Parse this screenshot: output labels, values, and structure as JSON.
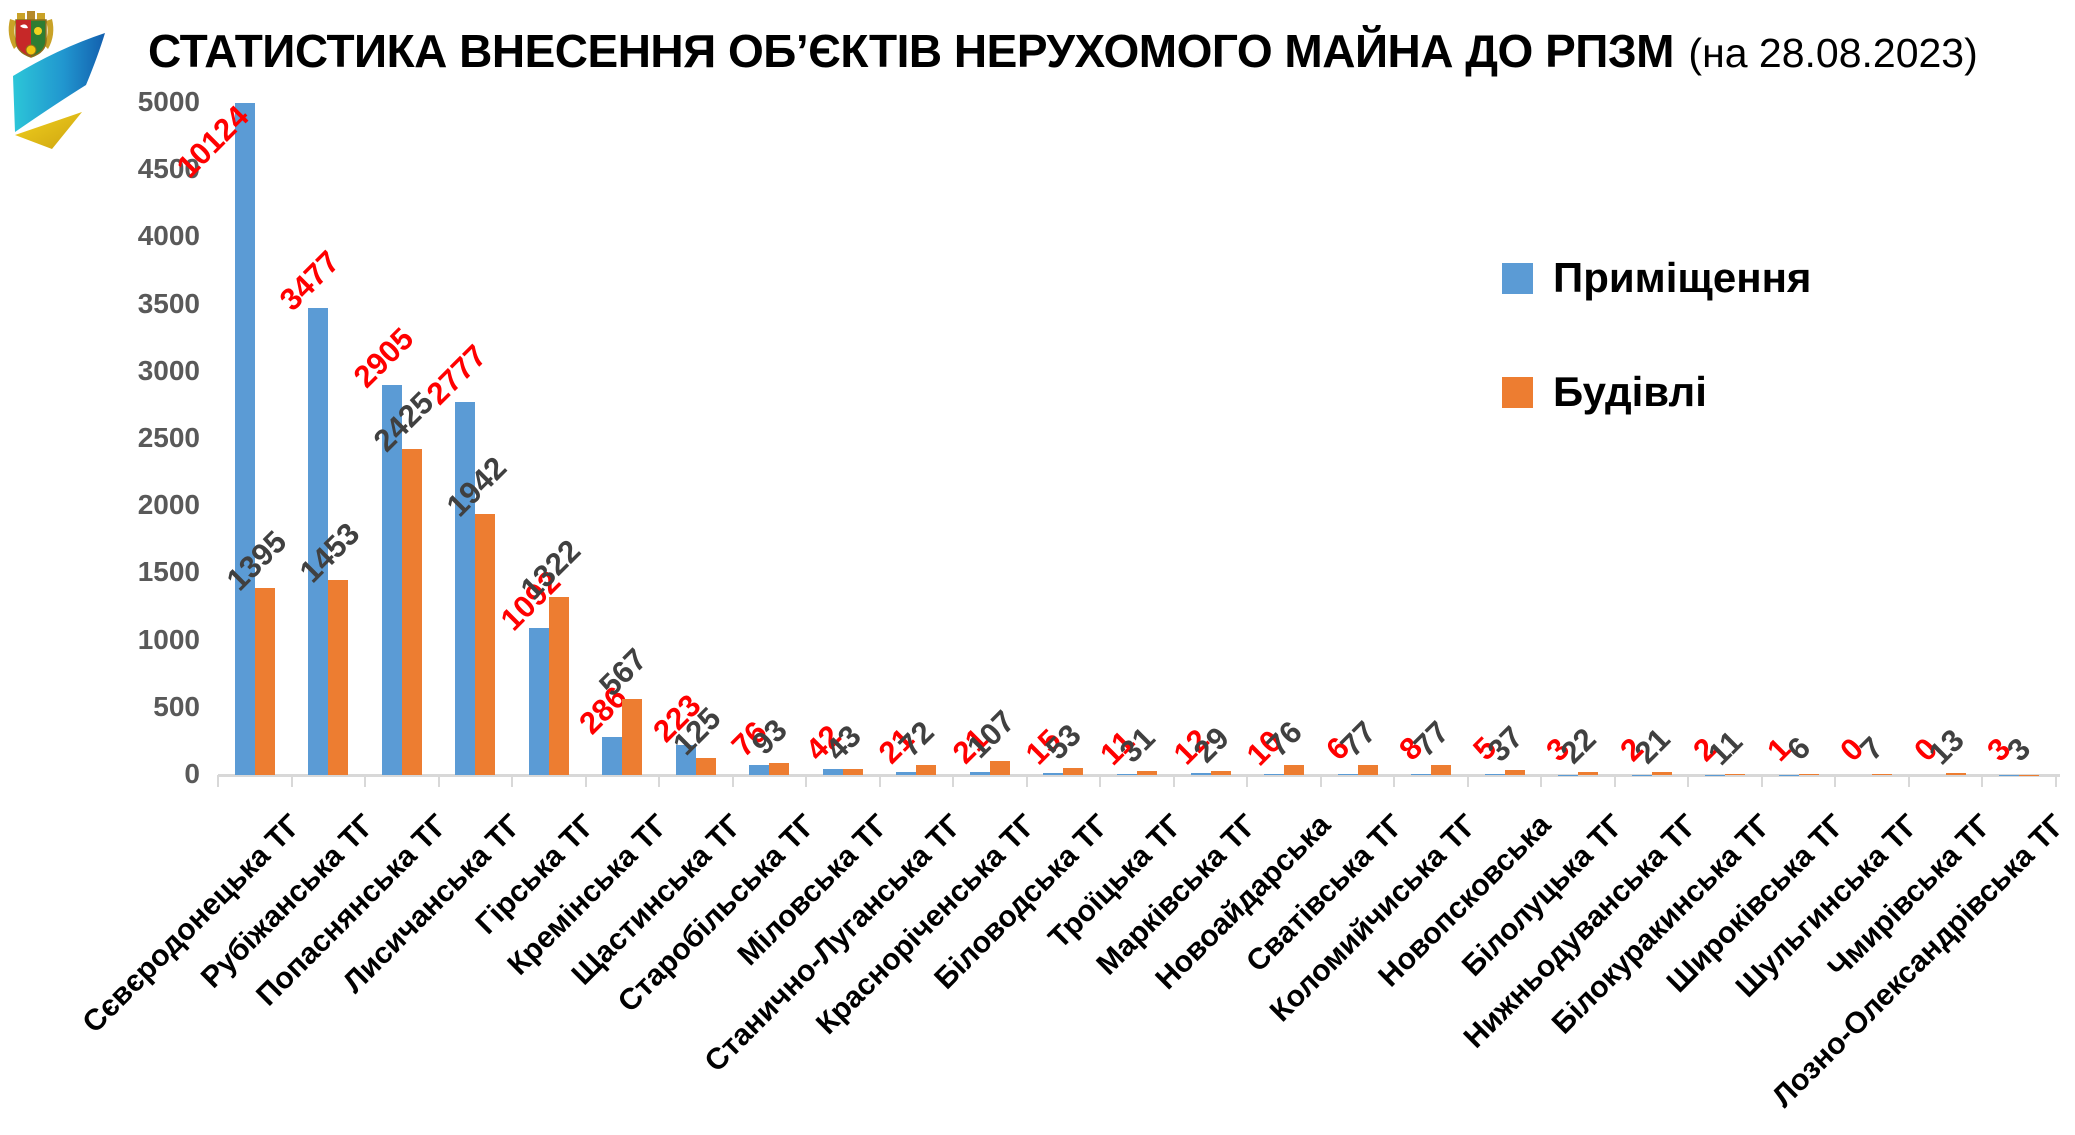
{
  "header": {
    "title_bold": "СТАТИСТИКА ВНЕСЕННЯ ОБ’ЄКТІВ НЕРУХОМОГО МАЙНА ДО РПЗМ",
    "title_date": "(на 28.08.2023)",
    "logo": "luhansk-oblast-coat-of-arms-with-blue-yellow-swoosh"
  },
  "legend": {
    "position": "right",
    "items": [
      {
        "label": "Приміщення",
        "color": "#5B9BD5"
      },
      {
        "label": "Будівлі",
        "color": "#ED7D31"
      }
    ]
  },
  "chart_data": {
    "type": "bar",
    "title": "СТАТИСТИКА ВНЕСЕННЯ ОБ’ЄКТІВ НЕРУХОМОГО МАЙНА ДО РПЗМ (на 28.08.2023)",
    "grid": false,
    "legend_position": "right",
    "categories": [
      "Сєвєродонецька ТГ",
      "Рубіжанська ТГ",
      "Попаснянська ТГ",
      "Лисичанська ТГ",
      "Гірська ТГ",
      "Кремінська ТГ",
      "Щастинська ТГ",
      "Старобільська ТГ",
      "Міловська ТГ",
      "Станично-Луганська ТГ",
      "Красноріченська ТГ",
      "Біловодська ТГ",
      "Троїцька ТГ",
      "Марківська ТГ",
      "Новоайдарська",
      "Сватівська ТГ",
      "Коломийчиська ТГ",
      "Новопсковська",
      "Білолуцька ТГ",
      "Нижньодуванська ТГ",
      "Білокуракинська ТГ",
      "Широківська ТГ",
      "Шульгинська ТГ",
      "Чмирівська ТГ",
      "Лозно-Олександрівська ТГ"
    ],
    "series": [
      {
        "name": "Приміщення",
        "color": "#5B9BD5",
        "label_color": "#FF0000",
        "values": [
          10124,
          3477,
          2905,
          2777,
          1092,
          286,
          223,
          76,
          42,
          21,
          21,
          15,
          11,
          12,
          10,
          6,
          8,
          5,
          3,
          2,
          2,
          1,
          0,
          0,
          3
        ]
      },
      {
        "name": "Будівлі",
        "color": "#ED7D31",
        "label_color": "#404040",
        "values": [
          1395,
          1453,
          2425,
          1942,
          1322,
          567,
          125,
          93,
          43,
          72,
          107,
          53,
          31,
          29,
          76,
          77,
          77,
          37,
          22,
          21,
          11,
          6,
          7,
          13,
          3
        ]
      }
    ],
    "y_axis": {
      "min": 0,
      "max": 5000,
      "step": 500,
      "ticks": [
        5000,
        4500,
        4000,
        3500,
        3000,
        2500,
        2000,
        1500,
        1000,
        500,
        0
      ]
    },
    "note_clipping": "первый синий столбец (10124) обрезан по шкале 5000"
  },
  "colors": {
    "axis_text": "#595959",
    "axis_line": "#D8D8D8",
    "title_text": "#000000"
  }
}
